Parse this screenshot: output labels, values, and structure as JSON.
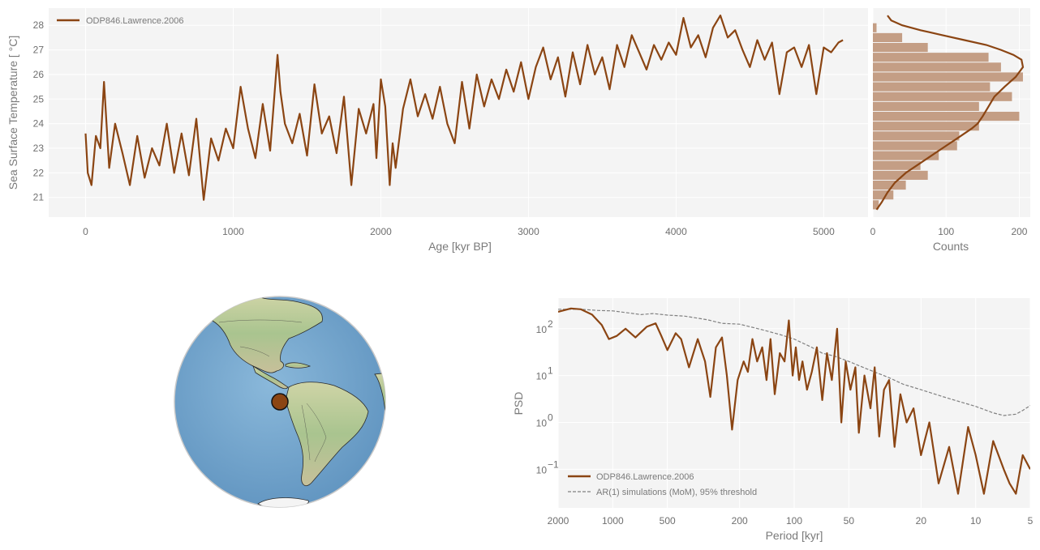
{
  "colors": {
    "series": "#8B4513",
    "hist": "#c49e85",
    "ar1": "#808080",
    "panel_bg": "#f4f4f4",
    "grid": "#ffffff",
    "ocean": "#7aa9cf",
    "marker": "#8B4513"
  },
  "chart_data": [
    {
      "type": "line",
      "xlabel": "Age [kyr BP]",
      "ylabel": "Sea Surface Temperature [$^\\circ$C]",
      "ylabel_display": "Sea Surface Temperature [ °C]",
      "xlim": [
        -250,
        5300
      ],
      "ylim": [
        20.2,
        28.7
      ],
      "x_ticks": [
        0,
        1000,
        2000,
        3000,
        4000,
        5000
      ],
      "y_ticks": [
        21,
        22,
        23,
        24,
        25,
        26,
        27,
        28
      ],
      "legend": "top-left",
      "grid": true,
      "series": [
        {
          "name": "ODP846.Lawrence.2006",
          "x": [
            0,
            15,
            40,
            70,
            100,
            125,
            160,
            200,
            250,
            300,
            350,
            400,
            450,
            500,
            550,
            600,
            650,
            700,
            750,
            800,
            850,
            900,
            950,
            1000,
            1050,
            1100,
            1150,
            1200,
            1250,
            1300,
            1320,
            1350,
            1400,
            1450,
            1500,
            1550,
            1600,
            1650,
            1700,
            1750,
            1800,
            1850,
            1900,
            1950,
            1970,
            2000,
            2030,
            2060,
            2080,
            2100,
            2150,
            2200,
            2250,
            2300,
            2350,
            2400,
            2450,
            2500,
            2550,
            2600,
            2650,
            2700,
            2750,
            2800,
            2850,
            2900,
            2950,
            3000,
            3050,
            3100,
            3150,
            3200,
            3250,
            3300,
            3350,
            3400,
            3450,
            3500,
            3550,
            3600,
            3650,
            3700,
            3750,
            3800,
            3850,
            3900,
            3950,
            4000,
            4050,
            4100,
            4150,
            4200,
            4250,
            4300,
            4350,
            4400,
            4450,
            4500,
            4550,
            4600,
            4650,
            4700,
            4750,
            4800,
            4850,
            4900,
            4950,
            5000,
            5050,
            5100,
            5130
          ],
          "values": [
            23.6,
            22.0,
            21.5,
            23.5,
            23.0,
            25.7,
            22.2,
            24.0,
            22.8,
            21.5,
            23.5,
            21.8,
            23.0,
            22.3,
            24.0,
            22.0,
            23.6,
            21.9,
            24.2,
            20.9,
            23.4,
            22.5,
            23.8,
            23.0,
            25.5,
            23.8,
            22.6,
            24.8,
            22.9,
            26.8,
            25.3,
            24.0,
            23.2,
            24.4,
            22.7,
            25.6,
            23.6,
            24.3,
            22.8,
            25.1,
            21.5,
            24.6,
            23.6,
            24.8,
            22.6,
            25.8,
            24.7,
            21.5,
            23.2,
            22.2,
            24.6,
            25.8,
            24.3,
            25.2,
            24.2,
            25.5,
            24.0,
            23.2,
            25.7,
            23.8,
            26.0,
            24.7,
            25.8,
            25.0,
            26.2,
            25.3,
            26.5,
            25.0,
            26.3,
            27.1,
            25.8,
            26.7,
            25.1,
            26.9,
            25.6,
            27.2,
            26.0,
            26.7,
            25.4,
            27.2,
            26.3,
            27.6,
            26.9,
            26.2,
            27.2,
            26.6,
            27.3,
            26.8,
            28.3,
            27.1,
            27.6,
            26.7,
            27.9,
            28.4,
            27.5,
            27.8,
            27.0,
            26.3,
            27.4,
            26.6,
            27.3,
            25.2,
            26.9,
            27.1,
            26.3,
            27.2,
            25.2,
            27.1,
            26.9,
            27.3,
            27.4
          ]
        }
      ]
    },
    {
      "type": "bar",
      "orientation": "horizontal",
      "xlabel": "Counts",
      "x_ticks": [
        0,
        100,
        200
      ],
      "xlim": [
        0,
        215
      ],
      "ylim": [
        20.2,
        28.7
      ],
      "bins": [
        20.5,
        20.9,
        21.3,
        21.7,
        22.1,
        22.5,
        22.9,
        23.3,
        23.7,
        24.1,
        24.5,
        24.9,
        25.3,
        25.7,
        26.1,
        26.5,
        26.9,
        27.3,
        27.7,
        28.1
      ],
      "counts": [
        8,
        28,
        45,
        75,
        65,
        90,
        115,
        118,
        145,
        200,
        145,
        190,
        160,
        205,
        175,
        158,
        75,
        40,
        5
      ],
      "kde_x": [
        5,
        12,
        20,
        30,
        45,
        65,
        85,
        100,
        115,
        125,
        135,
        143,
        150,
        158,
        166,
        180,
        195,
        205,
        203,
        192,
        175,
        155,
        125,
        95,
        65,
        40,
        25,
        20
      ],
      "kde_y": [
        20.5,
        20.8,
        21.2,
        21.6,
        22.0,
        22.4,
        22.8,
        23.1,
        23.4,
        23.6,
        23.8,
        24.0,
        24.3,
        24.7,
        25.1,
        25.5,
        25.9,
        26.3,
        26.6,
        26.8,
        27.0,
        27.2,
        27.4,
        27.6,
        27.8,
        28.0,
        28.2,
        28.4
      ]
    },
    {
      "type": "map",
      "projection": "orthographic",
      "center_lon": -80,
      "center_lat": 10,
      "marker_lon": -90.8,
      "marker_lat": -3.1
    },
    {
      "type": "line",
      "xlabel": "Period [kyr]",
      "ylabel": "PSD",
      "xscale": "log",
      "yscale": "log",
      "xlim": [
        2000,
        5
      ],
      "ylim": [
        0.015,
        450
      ],
      "x_ticks": [
        2000,
        1000,
        500,
        200,
        100,
        50,
        20,
        10,
        5
      ],
      "y_ticks": [
        0.1,
        1,
        10,
        100
      ],
      "y_tick_labels": [
        "10",
        "10",
        "10",
        "10"
      ],
      "y_tick_exponents": [
        "−1",
        "0",
        "1",
        "2"
      ],
      "legend": "bottom-left",
      "grid": true,
      "series": [
        {
          "name": "ODP846.Lawrence.2006",
          "x": [
            2000,
            1700,
            1500,
            1300,
            1150,
            1050,
            950,
            850,
            750,
            650,
            580,
            540,
            500,
            450,
            420,
            380,
            340,
            310,
            290,
            270,
            250,
            235,
            220,
            205,
            190,
            180,
            170,
            160,
            150,
            142,
            135,
            128,
            120,
            113,
            107,
            102,
            98,
            94,
            90,
            85,
            80,
            75,
            70,
            66,
            62,
            58,
            55,
            52,
            49,
            46,
            44,
            41,
            38,
            36,
            34,
            32,
            30,
            28,
            26,
            24,
            22,
            20,
            18,
            16,
            14,
            12.5,
            11,
            10,
            9,
            8,
            7,
            6.5,
            6,
            5.5,
            5
          ],
          "values": [
            230,
            270,
            260,
            200,
            120,
            60,
            70,
            100,
            65,
            110,
            130,
            70,
            35,
            80,
            60,
            15,
            60,
            20,
            3.5,
            40,
            65,
            10,
            0.7,
            8,
            20,
            12,
            60,
            20,
            40,
            8,
            60,
            4,
            30,
            20,
            150,
            10,
            40,
            8,
            20,
            5,
            12,
            40,
            3,
            30,
            8,
            100,
            1,
            20,
            5,
            15,
            0.6,
            10,
            2,
            15,
            0.5,
            5,
            8,
            0.3,
            4,
            1,
            2,
            0.2,
            1,
            0.05,
            0.3,
            0.03,
            0.8,
            0.2,
            0.03,
            0.4,
            0.1,
            0.05,
            0.03,
            0.2,
            0.1
          ]
        },
        {
          "name": "AR(1) simulations (MoM), 95% threshold",
          "x": [
            2000,
            1500,
            1200,
            1000,
            800,
            700,
            600,
            500,
            400,
            300,
            250,
            200,
            150,
            120,
            100,
            80,
            70,
            60,
            50,
            40,
            30,
            25,
            20,
            15,
            12,
            10,
            8,
            7,
            6,
            5.5,
            5
          ],
          "values": [
            260,
            260,
            245,
            240,
            215,
            200,
            210,
            195,
            185,
            155,
            130,
            125,
            95,
            75,
            60,
            40,
            30,
            26,
            20,
            14,
            9,
            6.5,
            5,
            3.5,
            2.7,
            2.2,
            1.6,
            1.4,
            1.5,
            1.8,
            2.3
          ]
        }
      ]
    }
  ]
}
